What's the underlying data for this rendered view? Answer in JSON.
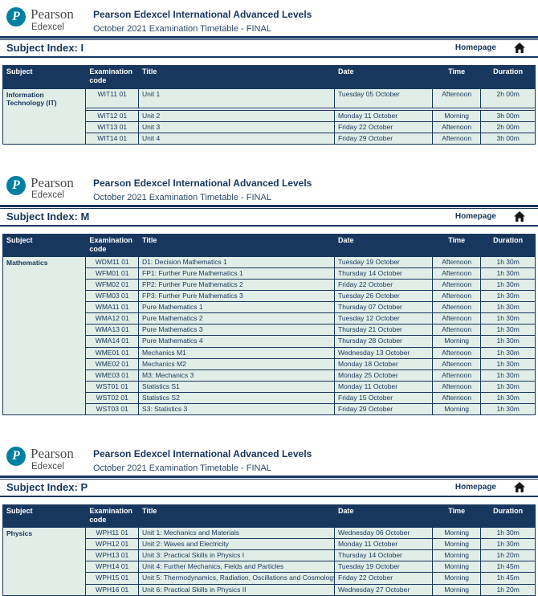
{
  "brand": {
    "logo_primary": "Pearson",
    "logo_secondary": "Edexcel",
    "logo_monogram": "P",
    "logo_color": "#007fa3",
    "title": "Pearson Edexcel International Advanced Levels",
    "subtitle": "October 2021 Examination Timetable - FINAL"
  },
  "colors": {
    "navy": "#17365d",
    "table_header_bg": "#17375e",
    "row_bg": "#e1eee7",
    "header_text": "#ffffff",
    "logo_teal": "#007fa3"
  },
  "columns": {
    "subject": "Subject",
    "code": "Examination code",
    "title": "Title",
    "date": "Date",
    "time": "Time",
    "duration": "Duration"
  },
  "homepage_label": "Homepage",
  "sections": [
    {
      "index_label": "Subject Index: I",
      "subject": "Information Technology (IT)",
      "rows": [
        {
          "code": "WIT11 01",
          "title": "Unit 1",
          "date": "Tuesday 05 October",
          "time": "Afternoon",
          "duration": "2h 00m"
        },
        {
          "code": "WIT12 01",
          "title": "Unit 2",
          "date": "Monday 11 October",
          "time": "Morning",
          "duration": "3h 00m"
        },
        {
          "code": "WIT13 01",
          "title": "Unit 3",
          "date": "Friday 22 October",
          "time": "Afternoon",
          "duration": "2h 00m"
        },
        {
          "code": "WIT14 01",
          "title": "Unit 4",
          "date": "Friday 29 October",
          "time": "Afternoon",
          "duration": "3h 00m"
        }
      ]
    },
    {
      "index_label": "Subject Index: M",
      "subject": "Mathematics",
      "rows": [
        {
          "code": "WDM11 01",
          "title": "D1: Decision Mathematics 1",
          "date": "Tuesday 19 October",
          "time": "Afternoon",
          "duration": "1h 30m"
        },
        {
          "code": "WFM01 01",
          "title": "FP1: Further Pure Mathematics 1",
          "date": "Thursday 14 October",
          "time": "Afternoon",
          "duration": "1h 30m"
        },
        {
          "code": "WFM02 01",
          "title": "FP2: Further Pure Mathematics 2",
          "date": "Friday 22 October",
          "time": "Afternoon",
          "duration": "1h 30m"
        },
        {
          "code": "WFM03 01",
          "title": "FP3: Further Pure Mathematics 3",
          "date": "Tuesday 26 October",
          "time": "Afternoon",
          "duration": "1h 30m"
        },
        {
          "code": "WMA11 01",
          "title": "Pure Mathematics 1",
          "date": "Thursday 07 October",
          "time": "Afternoon",
          "duration": "1h 30m"
        },
        {
          "code": "WMA12 01",
          "title": "Pure Mathematics 2",
          "date": "Tuesday 12 October",
          "time": "Afternoon",
          "duration": "1h 30m"
        },
        {
          "code": "WMA13 01",
          "title": "Pure Mathematics 3",
          "date": "Thursday 21 October",
          "time": "Afternoon",
          "duration": "1h 30m"
        },
        {
          "code": "WMA14 01",
          "title": "Pure Mathematics 4",
          "date": "Thursday 28 October",
          "time": "Morning",
          "duration": "1h 30m"
        },
        {
          "code": "WME01 01",
          "title": "Mechanics M1",
          "date": "Wednesday 13 October",
          "time": "Afternoon",
          "duration": "1h 30m"
        },
        {
          "code": "WME02 01",
          "title": "Mechanics M2",
          "date": "Monday 18 October",
          "time": "Afternoon",
          "duration": "1h 30m"
        },
        {
          "code": "WME03 01",
          "title": "M3: Mechanics 3",
          "date": "Monday 25 October",
          "time": "Afternoon",
          "duration": "1h 30m"
        },
        {
          "code": "WST01 01",
          "title": "Statistics S1",
          "date": "Monday 11 October",
          "time": "Afternoon",
          "duration": "1h 30m"
        },
        {
          "code": "WST02 01",
          "title": "Statistics S2",
          "date": "Friday 15 October",
          "time": "Afternoon",
          "duration": "1h 30m"
        },
        {
          "code": "WST03 01",
          "title": "S3: Statistics 3",
          "date": "Friday 29 October",
          "time": "Morning",
          "duration": "1h 30m"
        }
      ]
    },
    {
      "index_label": "Subject Index: P",
      "subject": "Physics",
      "rows": [
        {
          "code": "WPH11 01",
          "title": "Unit 1: Mechanics and Materials",
          "date": "Wednesday 06 October",
          "time": "Morning",
          "duration": "1h 30m"
        },
        {
          "code": "WPH12 01",
          "title": "Unit 2: Waves and Electricity",
          "date": "Monday 11 October",
          "time": "Morning",
          "duration": "1h 30m"
        },
        {
          "code": "WPH13 01",
          "title": "Unit 3: Practical Skills in Physics I",
          "date": "Thursday 14 October",
          "time": "Morning",
          "duration": "1h 20m"
        },
        {
          "code": "WPH14 01",
          "title": "Unit 4: Further Mechanics, Fields and Particles",
          "date": "Tuesday 19 October",
          "time": "Morning",
          "duration": "1h 45m"
        },
        {
          "code": "WPH15 01",
          "title": "Unit 5: Thermodynamics, Radiation, Oscillations and Cosmology",
          "date": "Friday 22 October",
          "time": "Morning",
          "duration": "1h 45m"
        },
        {
          "code": "WPH16 01",
          "title": "Unit 6: Practical Skills in Physics II",
          "date": "Wednesday 27 October",
          "time": "Morning",
          "duration": "1h 20m"
        }
      ]
    }
  ]
}
